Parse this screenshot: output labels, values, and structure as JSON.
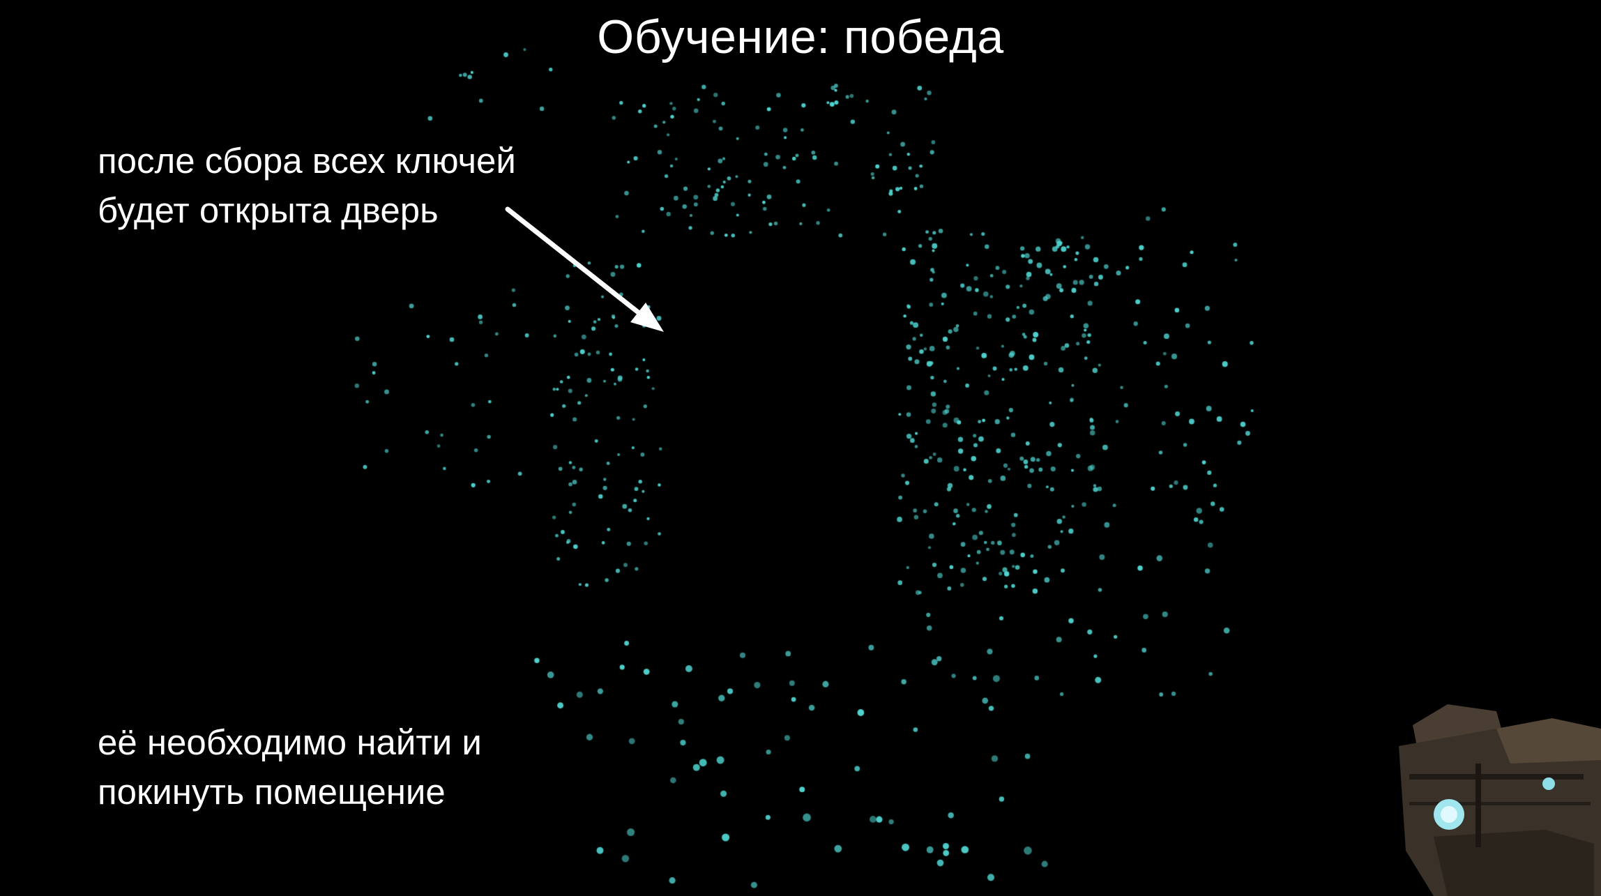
{
  "screen": {
    "title": "Обучение: победа",
    "hints": {
      "door": [
        "после сбора всех ключей",
        "будет открыта дверь"
      ],
      "exit": [
        "её необходимо найти и",
        "покинуть помещение"
      ]
    }
  },
  "colors": {
    "background": "#000000",
    "text": "#ffffff",
    "particle": "#4fd3cf",
    "weapon_body": "#3a3128"
  },
  "icons": {
    "pointer": "arrow-icon",
    "weapon": "blaster-icon"
  }
}
